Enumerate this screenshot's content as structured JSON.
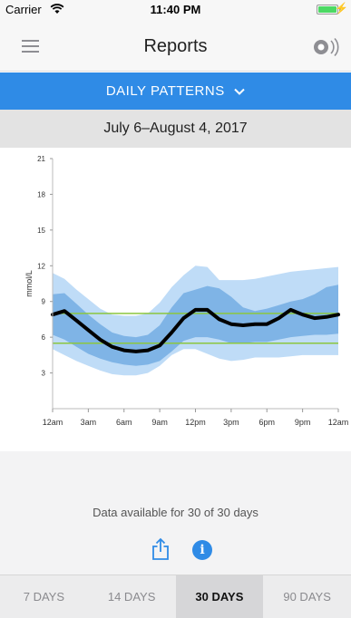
{
  "status_bar": {
    "carrier": "Carrier",
    "time": "11:40 PM"
  },
  "nav": {
    "title": "Reports",
    "menu_icon": "hamburger-menu-icon",
    "sensor_icon": "sensor-icon"
  },
  "report_selector": {
    "label": "DAILY PATTERNS",
    "icon": "chevron-down-icon"
  },
  "date_range": "July 6–August 4, 2017",
  "chart_data": {
    "type": "area",
    "ylabel": "mmol/L",
    "xlabel": "",
    "ylim": [
      0,
      21
    ],
    "yticks": [
      "21",
      "18",
      "15",
      "12",
      "9",
      "6",
      "3"
    ],
    "ytick_values": [
      21,
      18,
      15,
      12,
      9,
      6,
      3
    ],
    "xticks": [
      "12am",
      "3am",
      "6am",
      "9am",
      "12pm",
      "3pm",
      "6pm",
      "9pm",
      "12am"
    ],
    "xlim": [
      0,
      24
    ],
    "target_range": [
      5.5,
      8.0
    ],
    "x": [
      0,
      1,
      2,
      3,
      4,
      5,
      6,
      7,
      8,
      9,
      10,
      11,
      12,
      13,
      14,
      15,
      16,
      17,
      18,
      19,
      20,
      21,
      22,
      23,
      24
    ],
    "series": [
      {
        "role": "p10",
        "values": [
          5.0,
          4.5,
          4.0,
          3.6,
          3.2,
          2.9,
          2.8,
          2.8,
          3.0,
          3.6,
          4.5,
          5.0,
          5.0,
          4.6,
          4.2,
          4.0,
          4.1,
          4.3,
          4.3,
          4.3,
          4.4,
          4.5,
          4.5,
          4.5,
          4.5
        ]
      },
      {
        "role": "p25",
        "values": [
          6.2,
          5.8,
          5.2,
          4.6,
          4.2,
          3.9,
          3.7,
          3.6,
          3.7,
          4.0,
          4.8,
          5.7,
          6.0,
          6.0,
          5.8,
          5.5,
          5.5,
          5.6,
          5.6,
          5.8,
          6.0,
          6.1,
          6.2,
          6.2,
          6.3
        ]
      },
      {
        "role": "median",
        "values": [
          7.9,
          8.2,
          7.4,
          6.6,
          5.8,
          5.2,
          4.9,
          4.8,
          4.9,
          5.3,
          6.4,
          7.6,
          8.3,
          8.3,
          7.5,
          7.1,
          7.0,
          7.1,
          7.1,
          7.6,
          8.3,
          7.9,
          7.6,
          7.7,
          7.9
        ]
      },
      {
        "role": "p75",
        "values": [
          9.6,
          9.7,
          8.8,
          7.9,
          7.1,
          6.4,
          6.1,
          6.0,
          6.2,
          7.0,
          8.5,
          9.7,
          10.0,
          10.3,
          10.1,
          9.4,
          8.5,
          8.2,
          8.4,
          8.7,
          9.0,
          9.2,
          9.6,
          10.2,
          10.4
        ]
      },
      {
        "role": "p90",
        "values": [
          11.4,
          10.9,
          10.0,
          9.2,
          8.4,
          7.9,
          7.8,
          7.8,
          8.0,
          8.9,
          10.2,
          11.2,
          12.0,
          11.9,
          10.8,
          10.8,
          10.8,
          10.9,
          11.1,
          11.3,
          11.5,
          11.6,
          11.7,
          11.8,
          11.9
        ]
      }
    ],
    "colors": {
      "outer_band": "#bfdcf7",
      "inner_band": "#7fb4e6",
      "median": "#000000",
      "target_line": "#8cc63f"
    },
    "grid": false
  },
  "footer": {
    "availability": "Data available for 30 of 30 days",
    "share_icon": "share-icon",
    "info_icon": "info-icon",
    "info_glyph": "i"
  },
  "range_tabs": [
    "7 DAYS",
    "14 DAYS",
    "30 DAYS",
    "90 DAYS"
  ],
  "active_tab": "30 DAYS",
  "colors": {
    "accent": "#2f8be6"
  }
}
